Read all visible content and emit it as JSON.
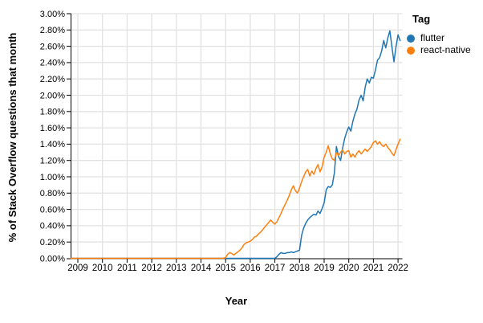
{
  "chart_data": {
    "type": "line",
    "title": "",
    "xlabel": "Year",
    "ylabel": "% of Stack Overflow questions that month",
    "x_tick_labels": [
      "2009",
      "2010",
      "2011",
      "2012",
      "2013",
      "2014",
      "2015",
      "2016",
      "2017",
      "2018",
      "2019",
      "2020",
      "2021",
      "2022"
    ],
    "y_tick_labels": [
      "0.00%",
      "0.20%",
      "0.40%",
      "0.60%",
      "0.80%",
      "1.00%",
      "1.20%",
      "1.40%",
      "1.60%",
      "1.80%",
      "2.00%",
      "2.20%",
      "2.40%",
      "2.60%",
      "2.80%",
      "3.00%"
    ],
    "y_tick_values": [
      0,
      0.2,
      0.4,
      0.6,
      0.8,
      1.0,
      1.2,
      1.4,
      1.6,
      1.8,
      2.0,
      2.2,
      2.4,
      2.6,
      2.8,
      3.0
    ],
    "ylim": [
      0,
      3
    ],
    "grid": true,
    "legend_position": "top-right",
    "x_unit": "month",
    "first_month": "2009-01",
    "last_month": "2022-02",
    "series": [
      {
        "name": "flutter",
        "color": "#1f77b4",
        "values": [
          0,
          0,
          0,
          0,
          0,
          0,
          0,
          0,
          0,
          0,
          0,
          0,
          0,
          0,
          0,
          0,
          0,
          0,
          0,
          0,
          0,
          0,
          0,
          0,
          0,
          0,
          0,
          0,
          0,
          0,
          0,
          0,
          0,
          0,
          0,
          0,
          0,
          0,
          0,
          0,
          0,
          0,
          0,
          0,
          0,
          0,
          0,
          0,
          0,
          0,
          0,
          0,
          0,
          0,
          0,
          0,
          0,
          0,
          0,
          0,
          0,
          0,
          0,
          0,
          0,
          0,
          0,
          0,
          0,
          0,
          0,
          0,
          0,
          0,
          0,
          0,
          0,
          0,
          0,
          0,
          0,
          0,
          0,
          0,
          0,
          0,
          0,
          0,
          0,
          0,
          0,
          0,
          0,
          0,
          0,
          0,
          0,
          0.02,
          0.05,
          0.07,
          0.06,
          0.06,
          0.07,
          0.07,
          0.08,
          0.07,
          0.08,
          0.09,
          0.1,
          0.28,
          0.37,
          0.43,
          0.47,
          0.5,
          0.52,
          0.54,
          0.53,
          0.58,
          0.55,
          0.61,
          0.68,
          0.84,
          0.88,
          0.87,
          0.9,
          1.05,
          1.37,
          1.25,
          1.2,
          1.35,
          1.47,
          1.55,
          1.61,
          1.56,
          1.68,
          1.77,
          1.83,
          1.94,
          2.0,
          1.93,
          2.1,
          2.2,
          2.15,
          2.22,
          2.21,
          2.31,
          2.43,
          2.46,
          2.54,
          2.67,
          2.58,
          2.7,
          2.79,
          2.6,
          2.41,
          2.59,
          2.74,
          2.67
        ]
      },
      {
        "name": "react-native",
        "color": "#ff7f0e",
        "values": [
          0,
          0,
          0,
          0,
          0,
          0,
          0,
          0,
          0,
          0,
          0,
          0,
          0,
          0,
          0,
          0,
          0,
          0,
          0,
          0,
          0,
          0,
          0,
          0,
          0,
          0,
          0,
          0,
          0,
          0,
          0,
          0,
          0,
          0,
          0,
          0,
          0,
          0,
          0,
          0,
          0,
          0,
          0,
          0,
          0,
          0,
          0,
          0,
          0,
          0,
          0,
          0,
          0,
          0,
          0,
          0,
          0,
          0,
          0,
          0,
          0,
          0,
          0,
          0,
          0,
          0,
          0,
          0,
          0,
          0,
          0,
          0,
          0.01,
          0.05,
          0.07,
          0.06,
          0.04,
          0.06,
          0.08,
          0.1,
          0.13,
          0.17,
          0.19,
          0.2,
          0.21,
          0.23,
          0.26,
          0.27,
          0.3,
          0.32,
          0.35,
          0.38,
          0.41,
          0.44,
          0.47,
          0.44,
          0.42,
          0.45,
          0.5,
          0.55,
          0.61,
          0.66,
          0.71,
          0.77,
          0.84,
          0.89,
          0.83,
          0.8,
          0.86,
          0.94,
          1.0,
          1.06,
          1.09,
          1.01,
          1.07,
          1.03,
          1.1,
          1.15,
          1.06,
          1.12,
          1.24,
          1.3,
          1.38,
          1.28,
          1.22,
          1.2,
          1.3,
          1.26,
          1.3,
          1.33,
          1.28,
          1.31,
          1.32,
          1.24,
          1.28,
          1.24,
          1.29,
          1.32,
          1.28,
          1.31,
          1.34,
          1.31,
          1.34,
          1.37,
          1.42,
          1.44,
          1.4,
          1.43,
          1.39,
          1.37,
          1.4,
          1.36,
          1.33,
          1.29,
          1.26,
          1.33,
          1.4,
          1.46
        ]
      }
    ]
  },
  "legend": {
    "title": "Tag",
    "items": [
      {
        "label": "flutter",
        "color": "#1f77b4"
      },
      {
        "label": "react-native",
        "color": "#ff7f0e"
      }
    ]
  },
  "style": {
    "grid_color": "#e2e2e2",
    "axis_color": "#000000",
    "tick_label_color": "#000000",
    "background": "#ffffff"
  }
}
